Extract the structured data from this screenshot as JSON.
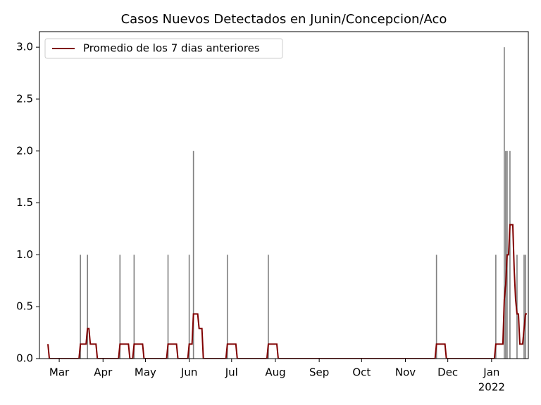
{
  "chart_data": {
    "type": "bar",
    "title": "Casos Nuevos Detectados en Junin/Concepcion/Aco",
    "xlim": [
      "2021-02-15",
      "2022-01-27"
    ],
    "ylim": [
      0,
      3.15
    ],
    "yticks": [
      {
        "value": 0,
        "label": "0.0"
      },
      {
        "value": 0.5,
        "label": "0.5"
      },
      {
        "value": 1,
        "label": "1.0"
      },
      {
        "value": 1.5,
        "label": "1.5"
      },
      {
        "value": 2,
        "label": "2.0"
      },
      {
        "value": 2.5,
        "label": "2.5"
      },
      {
        "value": 3,
        "label": "3.0"
      }
    ],
    "xticks": [
      {
        "value": "2021-03-01",
        "label": "Mar"
      },
      {
        "value": "2021-04-01",
        "label": "Apr"
      },
      {
        "value": "2021-05-01",
        "label": "May"
      },
      {
        "value": "2021-06-01",
        "label": "Jun"
      },
      {
        "value": "2021-07-01",
        "label": "Jul"
      },
      {
        "value": "2021-08-01",
        "label": "Aug"
      },
      {
        "value": "2021-09-01",
        "label": "Sep"
      },
      {
        "value": "2021-10-01",
        "label": "Oct"
      },
      {
        "value": "2021-11-01",
        "label": "Nov"
      },
      {
        "value": "2021-12-01",
        "label": "Dec"
      },
      {
        "value": "2022-01-01",
        "label": "Jan",
        "sublabel": "2022"
      }
    ],
    "legend": "upper left",
    "series": [
      {
        "type": "bar",
        "color": "#808080",
        "x": [
          "2021-03-16",
          "2021-03-21",
          "2021-04-13",
          "2021-04-23",
          "2021-05-17",
          "2021-06-01",
          "2021-06-04",
          "2021-06-28",
          "2021-07-27",
          "2021-11-23",
          "2022-01-04",
          "2022-01-10",
          "2022-01-11",
          "2022-01-12",
          "2022-01-14",
          "2022-01-19",
          "2022-01-24",
          "2022-01-25"
        ],
        "values": [
          1,
          1,
          1,
          1,
          1,
          1,
          2,
          1,
          1,
          1,
          1,
          3,
          2,
          2,
          2,
          1,
          1,
          1
        ]
      },
      {
        "type": "line",
        "name": "Promedio de los 7 dias anteriores",
        "color": "#800000",
        "x": [
          "2021-02-21",
          "2021-02-22",
          "2021-03-15",
          "2021-03-16",
          "2021-03-20",
          "2021-03-21",
          "2021-03-22",
          "2021-03-23",
          "2021-03-27",
          "2021-03-28",
          "2021-04-12",
          "2021-04-13",
          "2021-04-19",
          "2021-04-20",
          "2021-04-22",
          "2021-04-23",
          "2021-04-29",
          "2021-04-30",
          "2021-05-16",
          "2021-05-17",
          "2021-05-23",
          "2021-05-24",
          "2021-05-31",
          "2021-06-01",
          "2021-06-03",
          "2021-06-04",
          "2021-06-07",
          "2021-06-08",
          "2021-06-10",
          "2021-06-11",
          "2021-06-27",
          "2021-06-28",
          "2021-07-04",
          "2021-07-05",
          "2021-07-26",
          "2021-07-27",
          "2021-08-02",
          "2021-08-03",
          "2021-11-22",
          "2021-11-23",
          "2021-11-29",
          "2021-11-30",
          "2022-01-03",
          "2022-01-04",
          "2022-01-09",
          "2022-01-10",
          "2022-01-11",
          "2022-01-12",
          "2022-01-13",
          "2022-01-14",
          "2022-01-16",
          "2022-01-17",
          "2022-01-18",
          "2022-01-19",
          "2022-01-20",
          "2022-01-21",
          "2022-01-23",
          "2022-01-24",
          "2022-01-25",
          "2022-01-26"
        ],
        "values": [
          0.14,
          0,
          0,
          0.14,
          0.14,
          0.29,
          0.29,
          0.14,
          0.14,
          0,
          0,
          0.14,
          0.14,
          0,
          0,
          0.14,
          0.14,
          0,
          0,
          0.14,
          0.14,
          0,
          0,
          0.14,
          0.14,
          0.43,
          0.43,
          0.29,
          0.29,
          0,
          0,
          0.14,
          0.14,
          0,
          0,
          0.14,
          0.14,
          0,
          0,
          0.14,
          0.14,
          0,
          0,
          0.14,
          0.14,
          0.57,
          0.71,
          1.0,
          1.0,
          1.29,
          1.29,
          0.86,
          0.57,
          0.43,
          0.43,
          0.14,
          0.14,
          0.29,
          0.43,
          0.43
        ]
      }
    ]
  }
}
